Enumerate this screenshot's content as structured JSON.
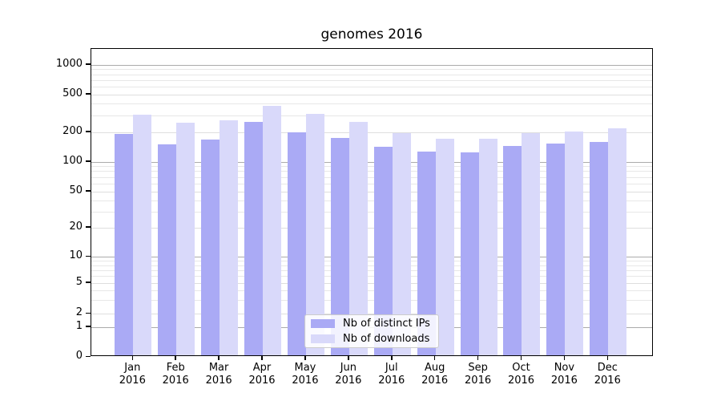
{
  "chart_data": {
    "type": "bar",
    "title": "genomes 2016",
    "categories": [
      "Jan 2016",
      "Feb 2016",
      "Mar 2016",
      "Apr 2016",
      "May 2016",
      "Jun 2016",
      "Jul 2016",
      "Aug 2016",
      "Sep 2016",
      "Oct 2016",
      "Nov 2016",
      "Dec 2016"
    ],
    "series": [
      {
        "name": "Nb of distinct IPs",
        "color": "#aaaaf5",
        "values": [
          185,
          145,
          162,
          247,
          191,
          166,
          135,
          121,
          120,
          140,
          147,
          152
        ]
      },
      {
        "name": "Nb of downloads",
        "color": "#d9d9fa",
        "values": [
          293,
          242,
          257,
          361,
          297,
          247,
          186,
          163,
          163,
          186,
          195,
          209
        ]
      }
    ],
    "yscale": "symlog",
    "ylim": [
      0,
      1000
    ],
    "yticks": [
      0,
      1,
      2,
      5,
      10,
      20,
      50,
      100,
      200,
      500,
      1000
    ],
    "grid": true,
    "legend_position": "inside-bottom-center"
  },
  "colors": {
    "grid_major": "#ababab",
    "grid_minor": "#e7e7e7",
    "axis": "#000000",
    "legend_border": "#cccccc"
  }
}
